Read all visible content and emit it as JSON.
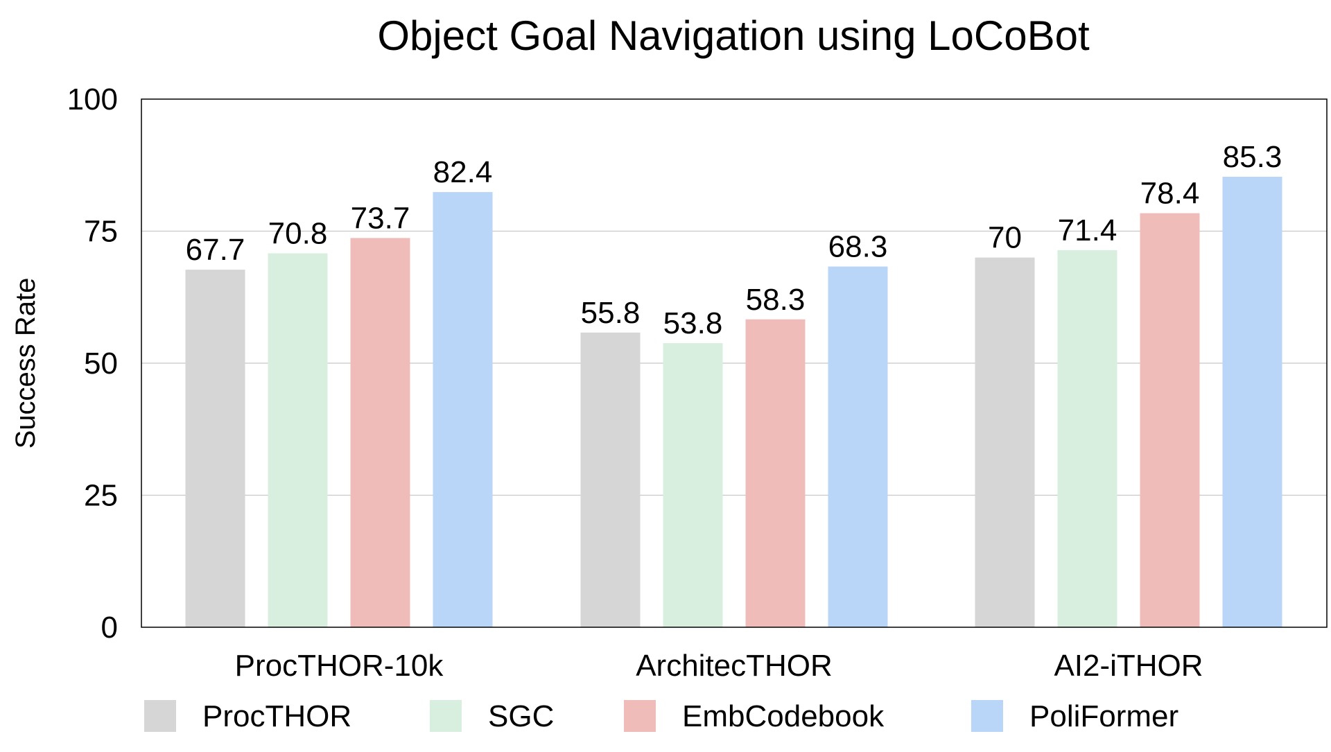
{
  "chart_data": {
    "type": "bar",
    "title": "Object Goal Navigation using LoCoBot",
    "xlabel": "",
    "ylabel": "Success Rate",
    "ylim": [
      0,
      100
    ],
    "yticks": [
      "0",
      "25",
      "50",
      "75",
      "100"
    ],
    "grid": true,
    "legend_position": "bottom",
    "categories": [
      "ProcTHOR-10k",
      "ArchitecTHOR",
      "AI2-iTHOR"
    ],
    "series": [
      {
        "name": "ProcTHOR",
        "color": "#d6d6d6",
        "values": [
          67.7,
          55.8,
          70
        ]
      },
      {
        "name": "SGC",
        "color": "#d8efe0",
        "values": [
          70.8,
          53.8,
          71.4
        ]
      },
      {
        "name": "EmbCodebook",
        "color": "#f0bcba",
        "values": [
          73.7,
          58.3,
          78.4
        ]
      },
      {
        "name": "PoliFormer",
        "color": "#b9d6f8",
        "values": [
          82.4,
          68.3,
          85.3
        ]
      }
    ],
    "value_labels": [
      [
        "67.7",
        "55.8",
        "70"
      ],
      [
        "70.8",
        "53.8",
        "71.4"
      ],
      [
        "73.7",
        "58.3",
        "78.4"
      ],
      [
        "82.4",
        "68.3",
        "85.3"
      ]
    ]
  }
}
